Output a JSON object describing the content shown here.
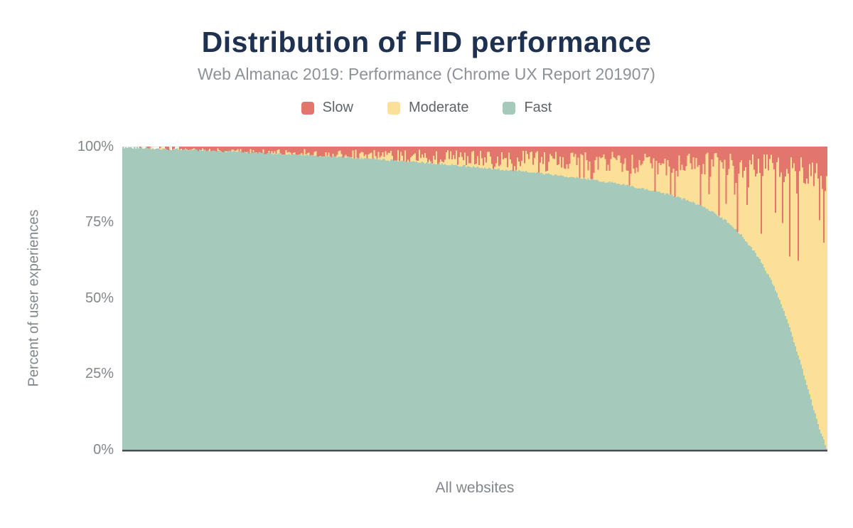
{
  "chart_data": {
    "type": "bar",
    "stacked": true,
    "title": "Distribution of FID performance",
    "subtitle": "Web Almanac 2019: Performance (Chrome UX Report 201907)",
    "xlabel": "All websites",
    "ylabel": "Percent of user experiences",
    "yticks": [
      "100%",
      "75%",
      "50%",
      "25%",
      "0%"
    ],
    "ylim": [
      0,
      100
    ],
    "legend_position": "top",
    "grid": "none (faint line at 100% only)",
    "x_description": "Each thin vertical bar is one website; websites are sorted left-to-right by descending share of fast FID experiences. Fast + Moderate + Slow = 100% per site.",
    "series": [
      {
        "name": "Slow",
        "color": "#e2766c"
      },
      {
        "name": "Moderate",
        "color": "#fce098"
      },
      {
        "name": "Fast",
        "color": "#a5c9ba"
      }
    ],
    "fast_pct_by_site_percentile": [
      [
        0,
        99.7
      ],
      [
        5,
        99.3
      ],
      [
        10,
        98.9
      ],
      [
        15,
        98.4
      ],
      [
        20,
        97.9
      ],
      [
        25,
        97.3
      ],
      [
        30,
        96.7
      ],
      [
        35,
        96.0
      ],
      [
        40,
        95.2
      ],
      [
        45,
        94.3
      ],
      [
        50,
        93.3
      ],
      [
        55,
        92.2
      ],
      [
        60,
        91.0
      ],
      [
        65,
        89.6
      ],
      [
        70,
        87.9
      ],
      [
        75,
        85.6
      ],
      [
        78,
        83.9
      ],
      [
        80,
        82.4
      ],
      [
        82,
        80.6
      ],
      [
        84,
        78.2
      ],
      [
        86,
        75.0
      ],
      [
        88,
        70.6
      ],
      [
        90,
        64.5
      ],
      [
        91,
        60.8
      ],
      [
        92,
        56.4
      ],
      [
        93,
        51.2
      ],
      [
        94,
        45.2
      ],
      [
        95,
        38.4
      ],
      [
        96,
        31.0
      ],
      [
        97,
        23.0
      ],
      [
        98,
        14.8
      ],
      [
        99,
        7.0
      ],
      [
        100,
        0.4
      ]
    ],
    "slow_avg_pct_by_site_percentile": [
      [
        0,
        0
      ],
      [
        2,
        0.4
      ],
      [
        5,
        0.9
      ],
      [
        10,
        1.3
      ],
      [
        20,
        1.9
      ],
      [
        30,
        2.4
      ],
      [
        40,
        2.9
      ],
      [
        50,
        3.5
      ],
      [
        60,
        4.1
      ],
      [
        70,
        4.7
      ],
      [
        80,
        5.3
      ],
      [
        90,
        6.0
      ],
      [
        95,
        6.5
      ],
      [
        100,
        8.0
      ]
    ],
    "render": {
      "columns": 497,
      "seed": 1337,
      "fast_jitter": 0.7,
      "no_band_below_pos": 2,
      "sparse_below_pos": 8,
      "slow_mult_min": 0.35,
      "slow_mult_span": 1.5,
      "spike_prob_pct": [
        [
          0,
          0
        ],
        [
          8,
          2
        ],
        [
          20,
          4
        ],
        [
          40,
          7
        ],
        [
          60,
          10
        ],
        [
          72,
          14
        ],
        [
          82,
          18
        ],
        [
          92,
          22
        ],
        [
          100,
          22
        ]
      ],
      "spike_max_depth_pct": [
        [
          0,
          0
        ],
        [
          20,
          3
        ],
        [
          40,
          7
        ],
        [
          60,
          12
        ],
        [
          72,
          17
        ],
        [
          82,
          28
        ],
        [
          90,
          40
        ],
        [
          95,
          38
        ],
        [
          100,
          24
        ]
      ],
      "top_line_color": "#e2e5e8",
      "axis_line_color": "#4a4e54"
    }
  }
}
